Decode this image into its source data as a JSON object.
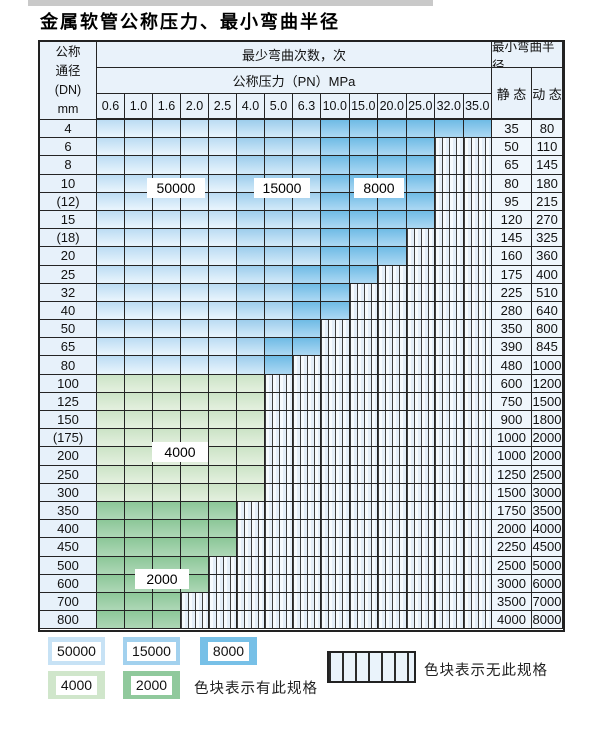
{
  "title": "金属软管公称压力、最小弯曲半径",
  "header": {
    "dn_lines": [
      "公称",
      "通径",
      "(DN)",
      "mm"
    ],
    "bend_cycles_label": "最少弯曲次数，次",
    "pressure_label": "公称压力（PN）MPa",
    "min_radius_label": "最小弯曲半径",
    "static_label": "静 态",
    "dynamic_label": "动 态",
    "pressures": [
      "0.6",
      "1.0",
      "1.6",
      "2.0",
      "2.5",
      "4.0",
      "5.0",
      "6.3",
      "10.0",
      "15.0",
      "20.0",
      "25.0",
      "32.0",
      "35.0"
    ]
  },
  "chart_data": {
    "type": "table",
    "note": "l/m/d/g/G = count of pressure columns (from 0.6 upward) colored for bend-cycle classes 50000/15000/8000/4000/2000; remaining of the 14 columns are hatched (spec not available)",
    "rows": [
      {
        "dn": "4",
        "st": "35",
        "dy": "80",
        "l": 5,
        "m": 3,
        "d": 6,
        "g": 0,
        "G": 0
      },
      {
        "dn": "6",
        "st": "50",
        "dy": "110",
        "l": 5,
        "m": 3,
        "d": 4,
        "g": 0,
        "G": 0
      },
      {
        "dn": "8",
        "st": "65",
        "dy": "145",
        "l": 5,
        "m": 3,
        "d": 4,
        "g": 0,
        "G": 0
      },
      {
        "dn": "10",
        "st": "80",
        "dy": "180",
        "l": 5,
        "m": 3,
        "d": 4,
        "g": 0,
        "G": 0
      },
      {
        "dn": "(12)",
        "st": "95",
        "dy": "215",
        "l": 5,
        "m": 3,
        "d": 4,
        "g": 0,
        "G": 0
      },
      {
        "dn": "15",
        "st": "120",
        "dy": "270",
        "l": 5,
        "m": 3,
        "d": 4,
        "g": 0,
        "G": 0
      },
      {
        "dn": "(18)",
        "st": "145",
        "dy": "325",
        "l": 5,
        "m": 3,
        "d": 3,
        "g": 0,
        "G": 0
      },
      {
        "dn": "20",
        "st": "160",
        "dy": "360",
        "l": 5,
        "m": 3,
        "d": 3,
        "g": 0,
        "G": 0
      },
      {
        "dn": "25",
        "st": "175",
        "dy": "400",
        "l": 5,
        "m": 2,
        "d": 3,
        "g": 0,
        "G": 0
      },
      {
        "dn": "32",
        "st": "225",
        "dy": "510",
        "l": 5,
        "m": 2,
        "d": 2,
        "g": 0,
        "G": 0
      },
      {
        "dn": "40",
        "st": "280",
        "dy": "640",
        "l": 5,
        "m": 2,
        "d": 2,
        "g": 0,
        "G": 0
      },
      {
        "dn": "50",
        "st": "350",
        "dy": "800",
        "l": 5,
        "m": 2,
        "d": 1,
        "g": 0,
        "G": 0
      },
      {
        "dn": "65",
        "st": "390",
        "dy": "845",
        "l": 5,
        "m": 1,
        "d": 2,
        "g": 0,
        "G": 0
      },
      {
        "dn": "80",
        "st": "480",
        "dy": "1000",
        "l": 5,
        "m": 1,
        "d": 1,
        "g": 0,
        "G": 0
      },
      {
        "dn": "100",
        "st": "600",
        "dy": "1200",
        "l": 0,
        "m": 0,
        "d": 0,
        "g": 6,
        "G": 0
      },
      {
        "dn": "125",
        "st": "750",
        "dy": "1500",
        "l": 0,
        "m": 0,
        "d": 0,
        "g": 6,
        "G": 0
      },
      {
        "dn": "150",
        "st": "900",
        "dy": "1800",
        "l": 0,
        "m": 0,
        "d": 0,
        "g": 6,
        "G": 0
      },
      {
        "dn": "(175)",
        "st": "1000",
        "dy": "2000",
        "l": 0,
        "m": 0,
        "d": 0,
        "g": 6,
        "G": 0
      },
      {
        "dn": "200",
        "st": "1000",
        "dy": "2000",
        "l": 0,
        "m": 0,
        "d": 0,
        "g": 6,
        "G": 0
      },
      {
        "dn": "250",
        "st": "1250",
        "dy": "2500",
        "l": 0,
        "m": 0,
        "d": 0,
        "g": 6,
        "G": 0
      },
      {
        "dn": "300",
        "st": "1500",
        "dy": "3000",
        "l": 0,
        "m": 0,
        "d": 0,
        "g": 6,
        "G": 0
      },
      {
        "dn": "350",
        "st": "1750",
        "dy": "3500",
        "l": 0,
        "m": 0,
        "d": 0,
        "g": 0,
        "G": 5
      },
      {
        "dn": "400",
        "st": "2000",
        "dy": "4000",
        "l": 0,
        "m": 0,
        "d": 0,
        "g": 0,
        "G": 5
      },
      {
        "dn": "450",
        "st": "2250",
        "dy": "4500",
        "l": 0,
        "m": 0,
        "d": 0,
        "g": 0,
        "G": 5
      },
      {
        "dn": "500",
        "st": "2500",
        "dy": "5000",
        "l": 0,
        "m": 0,
        "d": 0,
        "g": 0,
        "G": 4
      },
      {
        "dn": "600",
        "st": "3000",
        "dy": "6000",
        "l": 0,
        "m": 0,
        "d": 0,
        "g": 0,
        "G": 4
      },
      {
        "dn": "700",
        "st": "3500",
        "dy": "7000",
        "l": 0,
        "m": 0,
        "d": 0,
        "g": 0,
        "G": 3
      },
      {
        "dn": "800",
        "st": "4000",
        "dy": "8000",
        "l": 0,
        "m": 0,
        "d": 0,
        "g": 0,
        "G": 3
      }
    ]
  },
  "region_labels": {
    "b50000": "50000",
    "b15000": "15000",
    "b8000": "8000",
    "g4000": "4000",
    "g2000": "2000"
  },
  "legend": {
    "items": [
      {
        "label": "50000",
        "color": "#c7e2f5"
      },
      {
        "label": "15000",
        "color": "#a2d1ee"
      },
      {
        "label": "8000",
        "color": "#77c0e7"
      },
      {
        "label": "4000",
        "color": "#d0e6cb"
      },
      {
        "label": "2000",
        "color": "#90c99c"
      }
    ],
    "present_note": "色块表示有此规格",
    "absent_note": "色块表示无此规格"
  },
  "colors": {
    "cycles_50000": "#c7e2f5",
    "cycles_15000": "#a2d1ee",
    "cycles_8000": "#77c0e7",
    "cycles_4000": "#d0e6cb",
    "cycles_2000": "#90c99c",
    "header_bg": "#e9f2fa",
    "border": "#242424"
  }
}
